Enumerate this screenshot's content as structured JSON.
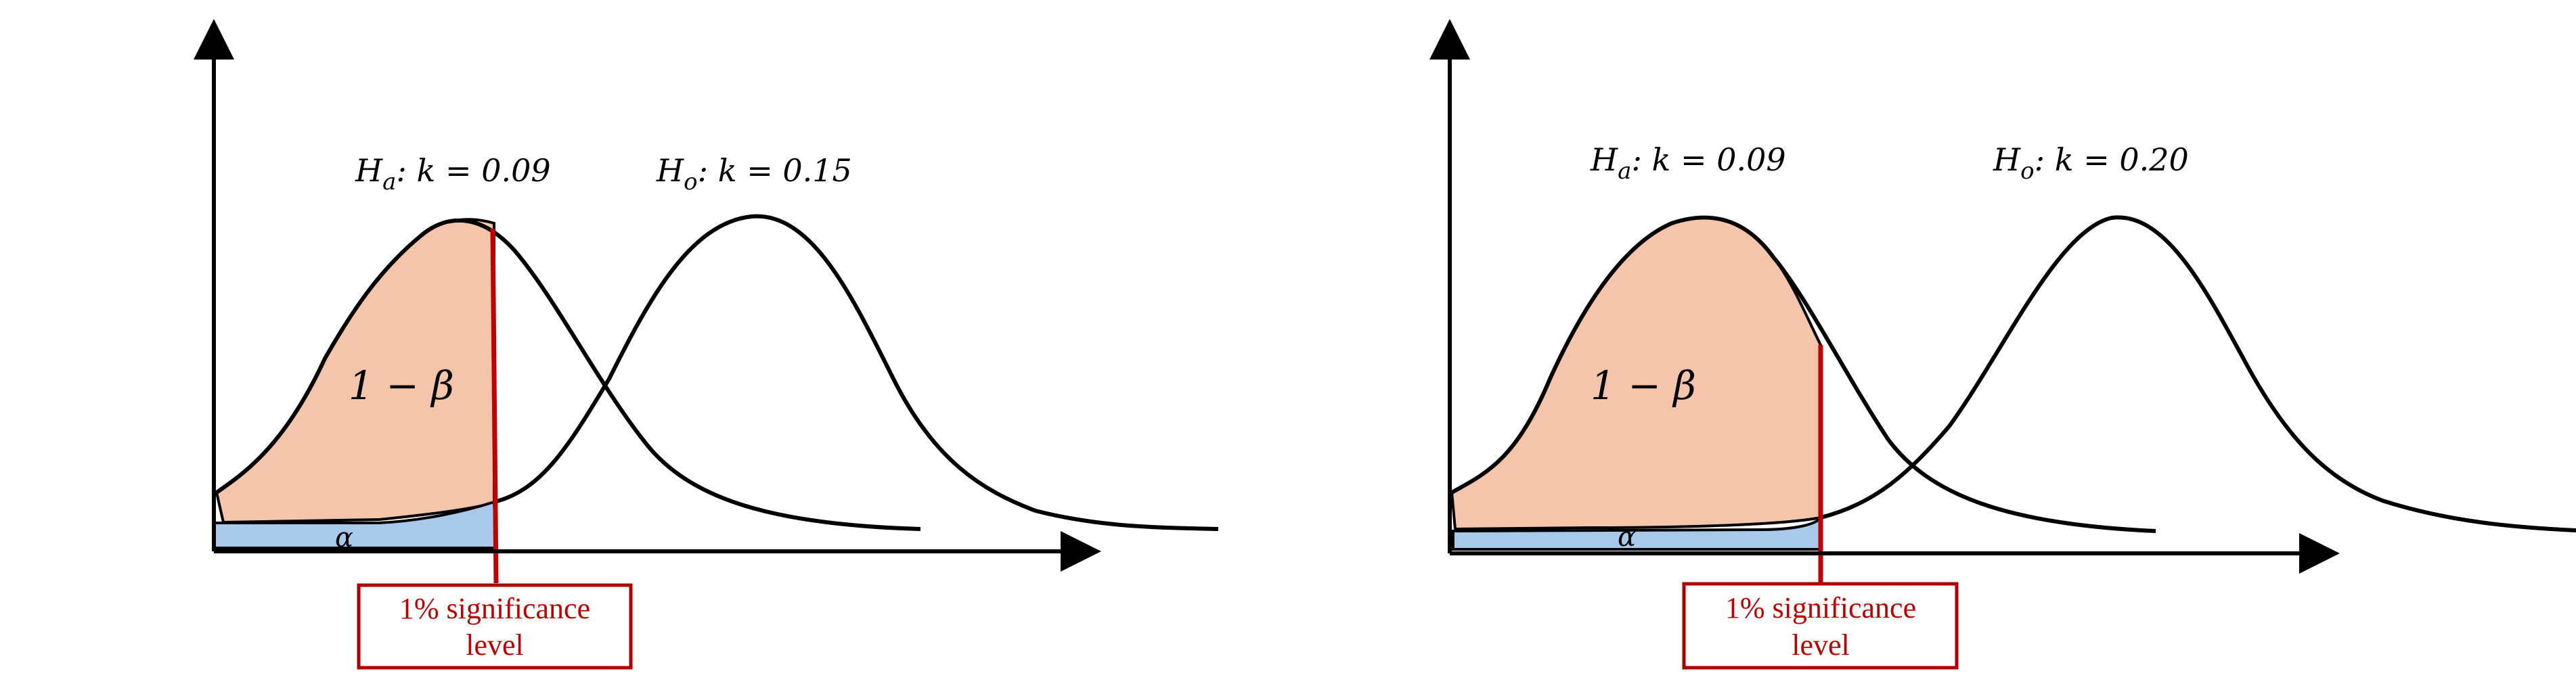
{
  "colors": {
    "power_fill": "#f5c5ab",
    "alpha_fill": "#a9c9ea",
    "curve_stroke": "#000000",
    "critical_line": "#c00000",
    "sig_box_border": "#b00000",
    "sig_text": "#c00000"
  },
  "panels": [
    {
      "ha_label": "H",
      "ha_sub": "a",
      "ha_rest": ": k = 0.09",
      "ho_label": "H",
      "ho_sub": "o",
      "ho_rest": ": k = 0.15",
      "power_label": "1 − β",
      "alpha_label": "α",
      "sig_line1": "1% significance",
      "sig_line2": "level"
    },
    {
      "ha_label": "H",
      "ha_sub": "a",
      "ha_rest": ": k = 0.09",
      "ho_label": "H",
      "ho_sub": "o",
      "ho_rest": ": k = 0.20",
      "power_label": "1 − β",
      "alpha_label": "α",
      "sig_line1": "1% significance",
      "sig_line2": "level"
    }
  ]
}
